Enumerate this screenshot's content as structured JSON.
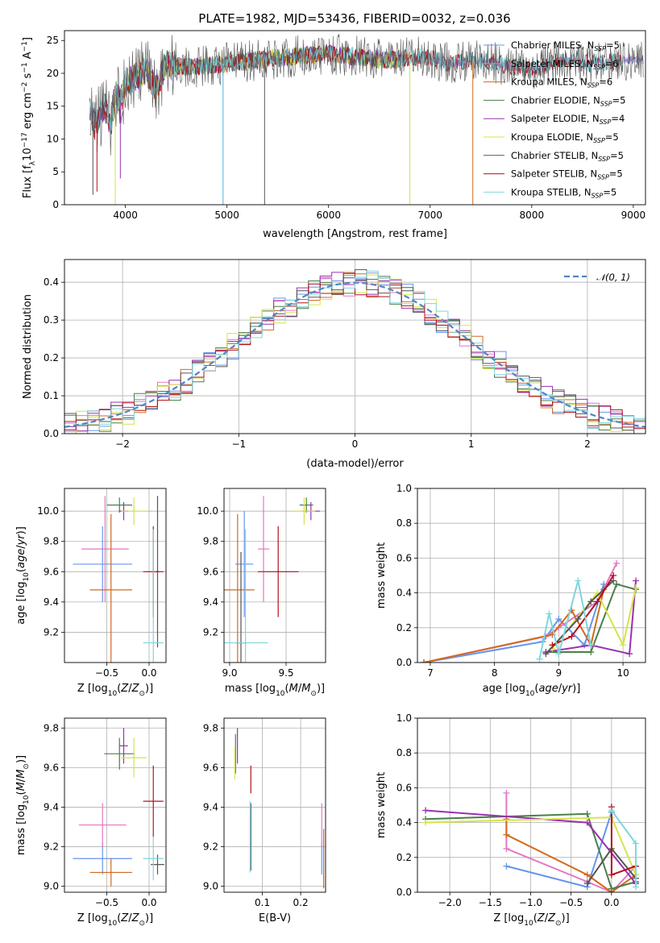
{
  "title": "PLATE=1982, MJD=53436, FIBERID=0032, z=0.036",
  "colors": {
    "Chabrier MILES": "#6495ed",
    "Salpeter MILES": "#e377c2",
    "Kroupa MILES": "#d2691e",
    "Chabrier ELODIE": "#4a7f4a",
    "Salpeter ELODIE": "#9b30b0",
    "Kroupa ELODIE": "#d6e34a",
    "Chabrier STELIB": "#555555",
    "Salpeter STELIB": "#b3121b",
    "Kroupa STELIB": "#7fd6dd"
  },
  "legend": [
    {
      "model": "Chabrier MILES",
      "label": "Chabrier MILES, N",
      "sub": "SSP",
      "eq": "=5"
    },
    {
      "model": "Salpeter MILES",
      "label": "Salpeter MILES, N",
      "sub": "SSP",
      "eq": "=6"
    },
    {
      "model": "Kroupa MILES",
      "label": "Kroupa MILES, N",
      "sub": "SSP",
      "eq": "=6"
    },
    {
      "model": "Chabrier ELODIE",
      "label": "Chabrier ELODIE, N",
      "sub": "SSP",
      "eq": "=5"
    },
    {
      "model": "Salpeter ELODIE",
      "label": "Salpeter ELODIE, N",
      "sub": "SSP",
      "eq": "=4"
    },
    {
      "model": "Kroupa ELODIE",
      "label": "Kroupa ELODIE, N",
      "sub": "SSP",
      "eq": "=5"
    },
    {
      "model": "Chabrier STELIB",
      "label": "Chabrier STELIB, N",
      "sub": "SSP",
      "eq": "=5"
    },
    {
      "model": "Salpeter STELIB",
      "label": "Salpeter STELIB, N",
      "sub": "SSP",
      "eq": "=5"
    },
    {
      "model": "Kroupa STELIB",
      "label": "Kroupa STELIB, N",
      "sub": "SSP",
      "eq": "=5"
    }
  ],
  "chart_data": [
    {
      "id": "spectrum",
      "type": "line",
      "xlabel": "wavelength [Angstrom, rest frame]",
      "ylabel": "Flux [fλ10⁻¹⁷ erg cm⁻² s⁻¹ A⁻¹]",
      "xlim": [
        3400,
        9120
      ],
      "ylim": [
        0,
        26.5
      ],
      "xticks": [
        4000,
        5000,
        6000,
        7000,
        8000,
        9000
      ],
      "yticks": [
        0,
        5,
        10,
        15,
        20,
        25
      ],
      "x": [
        3650,
        3700,
        3750,
        3800,
        3850,
        3900,
        3950,
        4000,
        4100,
        4200,
        4300,
        4400,
        4500,
        4700,
        5000,
        5300,
        5600,
        6000,
        6300,
        6600,
        6900,
        7200,
        7500,
        8000,
        8300,
        8600,
        8900
      ],
      "y": [
        14,
        12,
        13.5,
        15,
        12,
        17,
        15.5,
        18.5,
        19.5,
        20.5,
        17.5,
        21.5,
        21,
        21,
        21.5,
        22,
        22.5,
        23,
        22.5,
        22,
        22.5,
        21.5,
        22,
        20.5,
        22,
        21.5,
        22
      ],
      "series_ranges": [
        {
          "model": "Chabrier MILES",
          "x": [
            3650,
            9100
          ]
        },
        {
          "model": "Salpeter MILES",
          "x": [
            3650,
            9100
          ]
        },
        {
          "model": "Kroupa MILES",
          "x": [
            3650,
            7420
          ]
        },
        {
          "model": "Chabrier ELODIE",
          "x": [
            3650,
            6800
          ]
        },
        {
          "model": "Salpeter ELODIE",
          "x": [
            3650,
            6800
          ]
        },
        {
          "model": "Kroupa ELODIE",
          "x": [
            3900,
            6800
          ]
        },
        {
          "model": "Chabrier STELIB",
          "x": [
            3650,
            9100
          ]
        },
        {
          "model": "Salpeter STELIB",
          "x": [
            3650,
            8900
          ]
        },
        {
          "model": "Kroupa STELIB",
          "x": [
            3650,
            8900
          ]
        }
      ]
    },
    {
      "id": "residuals",
      "type": "histogram",
      "xlabel": "(data-model)/error",
      "ylabel": "Normed distribution",
      "xlim": [
        -2.5,
        2.5
      ],
      "ylim": [
        0,
        0.46
      ],
      "xticks": [
        -2,
        -1,
        0,
        1,
        2
      ],
      "yticks": [
        0.0,
        0.1,
        0.2,
        0.3,
        0.4
      ],
      "bin_width": 0.1,
      "reference": {
        "name": "N(0,1)",
        "mean": 0,
        "sigma": 1
      }
    },
    {
      "id": "age_vs_Z",
      "type": "errorbar",
      "xlabel": "Z [log10(Z/Z⊙)]",
      "ylabel": "age  [log10(age/yr)]",
      "xlim": [
        -1.0,
        0.2
      ],
      "ylim": [
        9.0,
        10.15
      ],
      "xticks": [
        -0.5,
        0.0
      ],
      "yticks": [
        9.2,
        9.4,
        9.6,
        9.8,
        10.0
      ],
      "points": [
        {
          "model": "Chabrier MILES",
          "x": -0.55,
          "xerr": 0.35,
          "y": 9.65,
          "yerr": 0.25
        },
        {
          "model": "Salpeter MILES",
          "x": -0.52,
          "xerr": 0.28,
          "y": 9.75,
          "yerr": 0.35
        },
        {
          "model": "Kroupa MILES",
          "x": -0.45,
          "xerr": 0.25,
          "y": 9.48,
          "yerr": 0.5
        },
        {
          "model": "Chabrier ELODIE",
          "x": -0.35,
          "xerr": 0.15,
          "y": 10.04,
          "yerr": 0.05
        },
        {
          "model": "Salpeter ELODIE",
          "x": -0.3,
          "xerr": 0.05,
          "y": 10.0,
          "yerr": 0.06
        },
        {
          "model": "Kroupa ELODIE",
          "x": -0.18,
          "xerr": 0.15,
          "y": 10.0,
          "yerr": 0.09
        },
        {
          "model": "Chabrier STELIB",
          "x": 0.1,
          "xerr": 0.02,
          "y": 9.6,
          "yerr": 0.5
        },
        {
          "model": "Salpeter STELIB",
          "x": 0.05,
          "xerr": 0.12,
          "y": 9.6,
          "yerr": 0.3
        },
        {
          "model": "Kroupa STELIB",
          "x": 0.05,
          "xerr": 0.12,
          "y": 9.13,
          "yerr": 0.75
        }
      ]
    },
    {
      "id": "age_vs_mass",
      "type": "errorbar",
      "xlabel": "mass [log10(M/M⊙)]",
      "ylabel": "",
      "xlim": [
        8.95,
        9.85
      ],
      "ylim": [
        9.0,
        10.15
      ],
      "xticks": [
        9.0,
        9.5
      ],
      "yticks": [
        9.2,
        9.4,
        9.6,
        9.8,
        10.0
      ],
      "points": [
        {
          "model": "Chabrier MILES",
          "x": 9.13,
          "xerr": 0.08,
          "y": 9.65,
          "yerr": 0.35
        },
        {
          "model": "Salpeter MILES",
          "x": 9.3,
          "xerr": 0.05,
          "y": 9.75,
          "yerr": 0.35
        },
        {
          "model": "Kroupa MILES",
          "x": 9.07,
          "xerr": 0.15,
          "y": 9.48,
          "yerr": 0.5
        },
        {
          "model": "Chabrier ELODIE",
          "x": 9.68,
          "xerr": 0.06,
          "y": 10.04,
          "yerr": 0.05
        },
        {
          "model": "Salpeter ELODIE",
          "x": 9.72,
          "xerr": 0.08,
          "y": 10.0,
          "yerr": 0.06
        },
        {
          "model": "Kroupa ELODIE",
          "x": 9.66,
          "xerr": 0.1,
          "y": 10.0,
          "yerr": 0.09
        },
        {
          "model": "Chabrier STELIB",
          "x": 9.1,
          "xerr": 0.05,
          "y": 9.13,
          "yerr": 0.6
        },
        {
          "model": "Salpeter STELIB",
          "x": 9.43,
          "xerr": 0.18,
          "y": 9.6,
          "yerr": 0.3
        },
        {
          "model": "Kroupa STELIB",
          "x": 9.14,
          "xerr": 0.2,
          "y": 9.13,
          "yerr": 0.75
        }
      ]
    },
    {
      "id": "weight_vs_age",
      "type": "line",
      "xlabel": "age  [log10(age/yr)]",
      "ylabel": "mass weight",
      "xlim": [
        6.8,
        10.35
      ],
      "ylim": [
        0,
        1.0
      ],
      "xticks": [
        7,
        8,
        9,
        10
      ],
      "yticks": [
        0.0,
        0.2,
        0.4,
        0.6,
        0.8,
        1.0
      ],
      "series": [
        {
          "model": "Chabrier MILES",
          "x": [
            6.9,
            8.75,
            9.0,
            9.4,
            9.7
          ],
          "y": [
            0.0,
            0.12,
            0.25,
            0.1,
            0.45
          ]
        },
        {
          "model": "Salpeter MILES",
          "x": [
            6.9,
            8.8,
            9.0,
            9.6,
            9.9
          ],
          "y": [
            0.0,
            0.15,
            0.2,
            0.35,
            0.57
          ]
        },
        {
          "model": "Kroupa MILES",
          "x": [
            6.9,
            8.9,
            9.2,
            9.5,
            9.7
          ],
          "y": [
            0.0,
            0.16,
            0.3,
            0.1,
            0.42
          ]
        },
        {
          "model": "Chabrier ELODIE",
          "x": [
            8.8,
            9.5,
            9.9,
            10.2
          ],
          "y": [
            0.06,
            0.06,
            0.45,
            0.42
          ]
        },
        {
          "model": "Salpeter ELODIE",
          "x": [
            8.8,
            9.5,
            10.1,
            10.2
          ],
          "y": [
            0.06,
            0.1,
            0.05,
            0.47
          ]
        },
        {
          "model": "Kroupa ELODIE",
          "x": [
            8.9,
            9.6,
            10.0,
            10.2
          ],
          "y": [
            0.08,
            0.4,
            0.1,
            0.43
          ]
        },
        {
          "model": "Chabrier STELIB",
          "x": [
            8.8,
            9.3,
            9.5,
            9.85
          ],
          "y": [
            0.05,
            0.25,
            0.35,
            0.47
          ]
        },
        {
          "model": "Salpeter STELIB",
          "x": [
            8.9,
            9.2,
            9.6,
            9.85
          ],
          "y": [
            0.1,
            0.15,
            0.35,
            0.5
          ]
        },
        {
          "model": "Kroupa STELIB",
          "x": [
            8.7,
            8.85,
            9.0,
            9.3,
            9.5
          ],
          "y": [
            0.02,
            0.28,
            0.05,
            0.47,
            0.1
          ]
        }
      ]
    },
    {
      "id": "mass_vs_Z",
      "type": "errorbar",
      "xlabel": "Z [log10(Z/Z⊙)]",
      "ylabel": "mass [log10(M/M⊙)]",
      "xlim": [
        -1.0,
        0.2
      ],
      "ylim": [
        8.97,
        9.85
      ],
      "xticks": [
        -0.5,
        0.0
      ],
      "yticks": [
        9.0,
        9.2,
        9.4,
        9.6,
        9.8
      ],
      "points": [
        {
          "model": "Chabrier MILES",
          "x": -0.55,
          "xerr": 0.35,
          "y": 9.14,
          "yerr": 0.08
        },
        {
          "model": "Salpeter MILES",
          "x": -0.55,
          "xerr": 0.28,
          "y": 9.31,
          "yerr": 0.11
        },
        {
          "model": "Kroupa MILES",
          "x": -0.45,
          "xerr": 0.25,
          "y": 9.07,
          "yerr": 0.07
        },
        {
          "model": "Chabrier ELODIE",
          "x": -0.35,
          "xerr": 0.18,
          "y": 9.67,
          "yerr": 0.08
        },
        {
          "model": "Salpeter ELODIE",
          "x": -0.3,
          "xerr": 0.05,
          "y": 9.71,
          "yerr": 0.09
        },
        {
          "model": "Kroupa ELODIE",
          "x": -0.18,
          "xerr": 0.15,
          "y": 9.65,
          "yerr": 0.1
        },
        {
          "model": "Chabrier STELIB",
          "x": 0.1,
          "xerr": 0.08,
          "y": 9.11,
          "yerr": 0.05
        },
        {
          "model": "Salpeter STELIB",
          "x": 0.05,
          "xerr": 0.12,
          "y": 9.43,
          "yerr": 0.18
        },
        {
          "model": "Kroupa STELIB",
          "x": 0.05,
          "xerr": 0.12,
          "y": 9.14,
          "yerr": 0.11
        }
      ]
    },
    {
      "id": "mass_vs_ebv",
      "type": "errorbar",
      "xlabel": "E(B-V)",
      "ylabel": "",
      "xlim": [
        0.0,
        0.265
      ],
      "ylim": [
        8.97,
        9.85
      ],
      "xticks": [
        0.1,
        0.2
      ],
      "yticks": [
        9.0,
        9.2,
        9.4,
        9.6,
        9.8
      ],
      "points": [
        {
          "model": "Chabrier MILES",
          "x": 0.255,
          "xerr": 0.0,
          "y": 9.14,
          "yerr": 0.08
        },
        {
          "model": "Salpeter MILES",
          "x": 0.255,
          "xerr": 0.0,
          "y": 9.31,
          "yerr": 0.11
        },
        {
          "model": "Kroupa MILES",
          "x": 0.26,
          "xerr": 0.0,
          "y": 9.14,
          "yerr": 0.15
        },
        {
          "model": "Chabrier ELODIE",
          "x": 0.03,
          "xerr": 0.0,
          "y": 9.67,
          "yerr": 0.1
        },
        {
          "model": "Salpeter ELODIE",
          "x": 0.035,
          "xerr": 0.0,
          "y": 9.71,
          "yerr": 0.09
        },
        {
          "model": "Kroupa ELODIE",
          "x": 0.028,
          "xerr": 0.0,
          "y": 9.62,
          "yerr": 0.08
        },
        {
          "model": "Chabrier STELIB",
          "x": 0.07,
          "xerr": 0.0,
          "y": 9.25,
          "yerr": 0.17
        },
        {
          "model": "Salpeter STELIB",
          "x": 0.07,
          "xerr": 0.0,
          "y": 9.54,
          "yerr": 0.07
        },
        {
          "model": "Kroupa STELIB",
          "x": 0.068,
          "xerr": 0.0,
          "y": 9.25,
          "yerr": 0.18
        }
      ]
    },
    {
      "id": "weight_vs_Z",
      "type": "line",
      "xlabel": "Z [log10(Z/Z⊙)]",
      "ylabel": "mass weight",
      "xlim": [
        -2.4,
        0.42
      ],
      "ylim": [
        0,
        1.0
      ],
      "xticks": [
        -2.0,
        -1.5,
        -1.0,
        -0.5,
        0.0
      ],
      "yticks": [
        0.0,
        0.2,
        0.4,
        0.6,
        0.8,
        1.0
      ],
      "series": [
        {
          "model": "Chabrier MILES",
          "x": [
            -1.3,
            -0.3,
            0.0
          ],
          "y": [
            0.15,
            0.03,
            0.46
          ]
        },
        {
          "model": "Salpeter MILES",
          "x": [
            -1.3,
            -1.3,
            -0.3,
            0.0,
            0.3
          ],
          "y": [
            0.57,
            0.25,
            0.06,
            0.0,
            0.15
          ]
        },
        {
          "model": "Kroupa MILES",
          "x": [
            -1.3,
            -1.3,
            -0.3,
            0.0,
            0.3
          ],
          "y": [
            0.42,
            0.33,
            0.1,
            0.0,
            0.1
          ]
        },
        {
          "model": "Chabrier ELODIE",
          "x": [
            -2.3,
            -0.3,
            0.0,
            0.3
          ],
          "y": [
            0.42,
            0.45,
            0.02,
            0.06
          ]
        },
        {
          "model": "Salpeter ELODIE",
          "x": [
            -2.3,
            -0.3,
            0.3
          ],
          "y": [
            0.47,
            0.4,
            0.05
          ]
        },
        {
          "model": "Kroupa ELODIE",
          "x": [
            -2.3,
            0.0,
            0.3
          ],
          "y": [
            0.4,
            0.43,
            0.1
          ]
        },
        {
          "model": "Chabrier STELIB",
          "x": [
            -0.3,
            0.0,
            0.3
          ],
          "y": [
            0.05,
            0.25,
            0.08
          ]
        },
        {
          "model": "Salpeter STELIB",
          "x": [
            0.0,
            0.0,
            0.3
          ],
          "y": [
            0.49,
            0.1,
            0.15
          ]
        },
        {
          "model": "Kroupa STELIB",
          "x": [
            0.0,
            0.3,
            0.3
          ],
          "y": [
            0.47,
            0.28,
            0.03
          ]
        }
      ]
    }
  ]
}
